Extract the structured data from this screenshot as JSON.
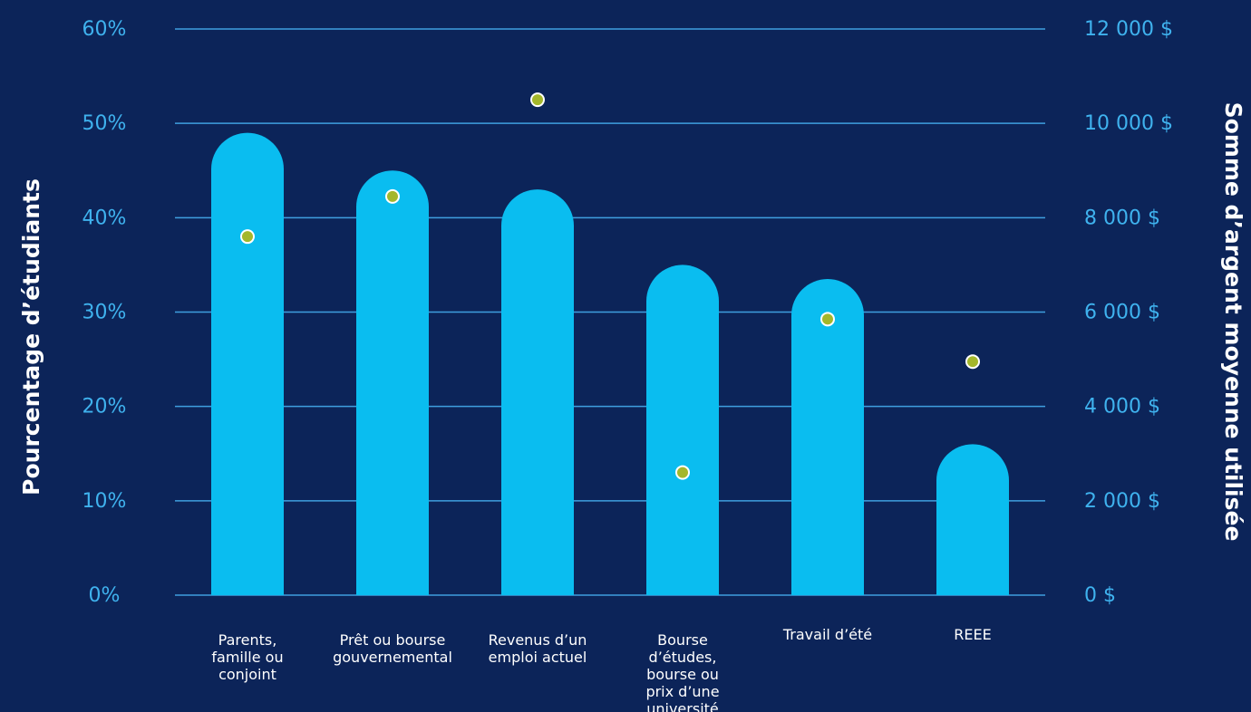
{
  "colors": {
    "background": "#0c2459",
    "bar": "#0abdf0",
    "gridline": "#3f9fe0",
    "tick_label": "#3fb2ee",
    "marker_fill": "#a4b72b",
    "marker_stroke": "#ffffff",
    "text": "#ffffff"
  },
  "chart_data": {
    "type": "bar",
    "categories": [
      [
        "Parents,",
        "famille ou",
        "conjoint"
      ],
      [
        "Prêt ou bourse",
        "gouvernemental"
      ],
      [
        "Revenus d’un",
        "emploi actuel"
      ],
      [
        "Bourse",
        "d’études,",
        "bourse ou",
        "prix d’une",
        "université"
      ],
      [
        "Travail d’été"
      ],
      [
        "REEE"
      ]
    ],
    "series": [
      {
        "axis": "left",
        "mark": "bar",
        "values": [
          49,
          45,
          43,
          35,
          33.5,
          16
        ]
      },
      {
        "axis": "right",
        "mark": "dot",
        "values": [
          7600,
          8450,
          10500,
          2600,
          5850,
          4950
        ]
      }
    ],
    "ylabel": "Pourcentage d’étudiants",
    "y2label": "Somme d’argent moyenne utilisée",
    "ylim": [
      0,
      60
    ],
    "y2lim": [
      0,
      12000
    ],
    "yticks": [
      "0%",
      "10%",
      "20%",
      "30%",
      "40%",
      "50%",
      "60%"
    ],
    "y2ticks": [
      "0 $",
      "2 000 $",
      "4 000 $",
      "6 000 $",
      "8 000 $",
      "10 000 $",
      "12 000 $"
    ],
    "grid": true
  }
}
